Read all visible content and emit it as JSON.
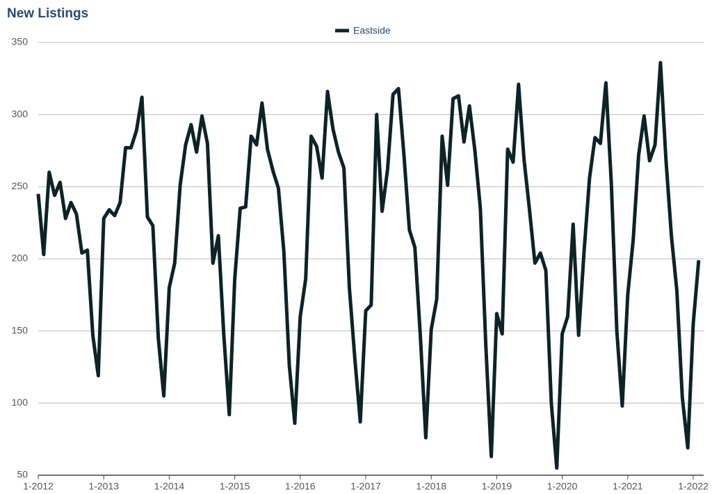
{
  "chart_data": {
    "type": "line",
    "title": "New Listings",
    "categories": [
      "1-2012",
      null,
      null,
      null,
      null,
      null,
      null,
      null,
      null,
      null,
      null,
      null,
      "1-2013",
      null,
      null,
      null,
      null,
      null,
      null,
      null,
      null,
      null,
      null,
      null,
      "1-2014",
      null,
      null,
      null,
      null,
      null,
      null,
      null,
      null,
      null,
      null,
      null,
      "1-2015",
      null,
      null,
      null,
      null,
      null,
      null,
      null,
      null,
      null,
      null,
      null,
      "1-2016",
      null,
      null,
      null,
      null,
      null,
      null,
      null,
      null,
      null,
      null,
      null,
      "1-2017",
      null,
      null,
      null,
      null,
      null,
      null,
      null,
      null,
      null,
      null,
      null,
      "1-2018",
      null,
      null,
      null,
      null,
      null,
      null,
      null,
      null,
      null,
      null,
      null,
      "1-2019",
      null,
      null,
      null,
      null,
      null,
      null,
      null,
      null,
      null,
      null,
      null,
      "1-2020",
      null,
      null,
      null,
      null,
      null,
      null,
      null,
      null,
      null,
      null,
      null,
      "1-2021",
      null,
      null,
      null,
      null,
      null,
      null,
      null,
      null,
      null,
      null,
      null,
      "1-2022",
      null
    ],
    "series": [
      {
        "name": "Eastside",
        "color": "#0d2326",
        "values": [
          245,
          203,
          260,
          244,
          253,
          228,
          239,
          231,
          204,
          206,
          147,
          119,
          228,
          234,
          230,
          239,
          277,
          277,
          289,
          312,
          229,
          223,
          145,
          105,
          180,
          197,
          251,
          279,
          293,
          274,
          299,
          280,
          197,
          216,
          147,
          92,
          186,
          235,
          236,
          285,
          279,
          308,
          276,
          261,
          249,
          205,
          126,
          86,
          160,
          186,
          285,
          278,
          256,
          316,
          290,
          274,
          263,
          180,
          131,
          87,
          164,
          168,
          300,
          233,
          262,
          314,
          318,
          272,
          220,
          208,
          147,
          76,
          151,
          172,
          285,
          251,
          311,
          313,
          281,
          306,
          275,
          235,
          140,
          63,
          162,
          148,
          276,
          267,
          321,
          269,
          234,
          197,
          204,
          192,
          100,
          55,
          148,
          160,
          224,
          147,
          205,
          256,
          284,
          280,
          322,
          252,
          150,
          98,
          175,
          213,
          272,
          299,
          268,
          279,
          336,
          269,
          216,
          178,
          104,
          69,
          155,
          199
        ]
      }
    ],
    "ylim": [
      50,
      350
    ],
    "yticks": [
      50,
      100,
      150,
      200,
      250,
      300,
      350
    ],
    "grid": true,
    "legend": "top"
  }
}
